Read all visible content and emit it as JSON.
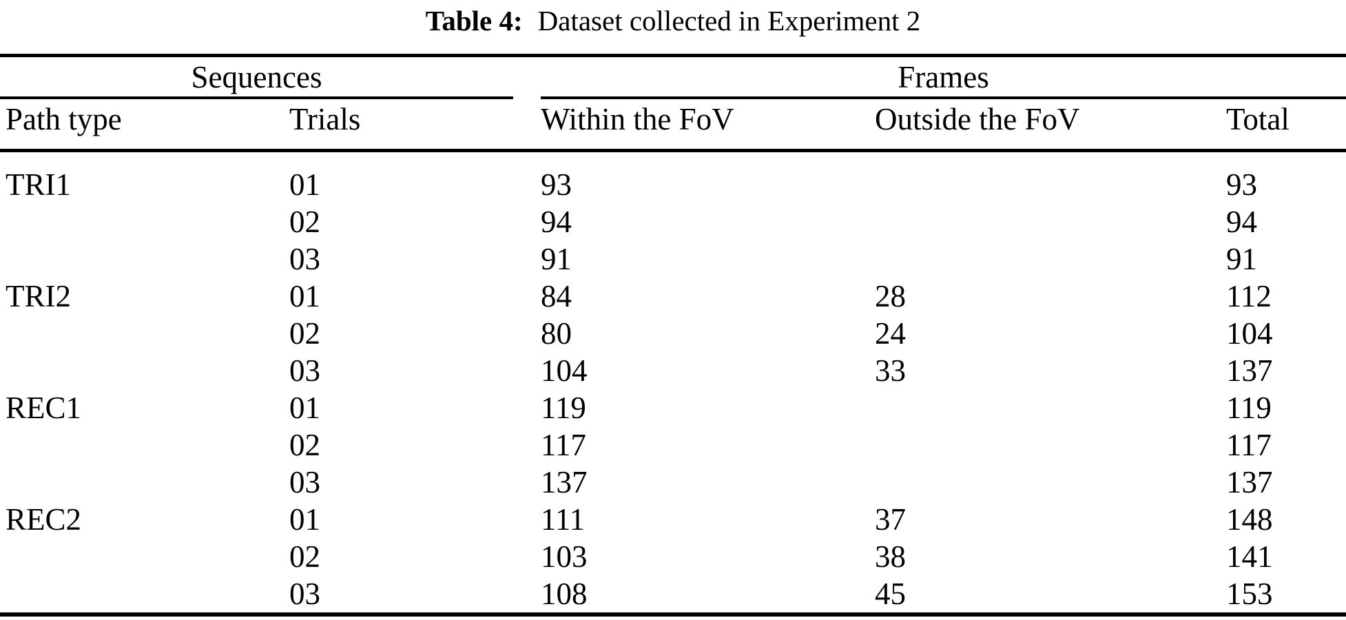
{
  "caption": {
    "label": "Table 4:",
    "text": "Dataset collected in Experiment 2"
  },
  "table": {
    "groups": {
      "sequences": "Sequences",
      "frames": "Frames"
    },
    "columns": {
      "path_type": "Path type",
      "trials": "Trials",
      "within_fov": "Within the FoV",
      "outside_fov": "Outside the FoV",
      "total": "Total"
    },
    "rows": [
      {
        "path": "TRI1",
        "trial": "01",
        "within": "93",
        "outside": "",
        "total": "93"
      },
      {
        "path": "",
        "trial": "02",
        "within": "94",
        "outside": "",
        "total": "94"
      },
      {
        "path": "",
        "trial": "03",
        "within": "91",
        "outside": "",
        "total": "91"
      },
      {
        "path": "TRI2",
        "trial": "01",
        "within": "84",
        "outside": "28",
        "total": "112"
      },
      {
        "path": "",
        "trial": "02",
        "within": "80",
        "outside": "24",
        "total": "104"
      },
      {
        "path": "",
        "trial": "03",
        "within": "104",
        "outside": "33",
        "total": "137"
      },
      {
        "path": "REC1",
        "trial": "01",
        "within": "119",
        "outside": "",
        "total": "119"
      },
      {
        "path": "",
        "trial": "02",
        "within": "117",
        "outside": "",
        "total": "117"
      },
      {
        "path": "",
        "trial": "03",
        "within": "137",
        "outside": "",
        "total": "137"
      },
      {
        "path": "REC2",
        "trial": "01",
        "within": "111",
        "outside": "37",
        "total": "148"
      },
      {
        "path": "",
        "trial": "02",
        "within": "103",
        "outside": "38",
        "total": "141"
      },
      {
        "path": "",
        "trial": "03",
        "within": "108",
        "outside": "45",
        "total": "153"
      }
    ]
  },
  "colors": {
    "text": "#000000",
    "background": "#ffffff",
    "rule": "#000000"
  }
}
